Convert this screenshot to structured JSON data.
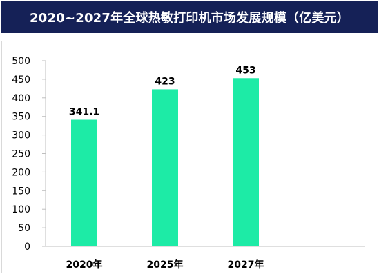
{
  "chart_data": {
    "type": "bar",
    "title": "2020~2027年全球热敏打印机市场发展规模（亿美元）",
    "categories": [
      "2020年",
      "2025年",
      "2027年"
    ],
    "values": [
      341.1,
      423,
      453
    ],
    "value_labels": [
      "341.1",
      "423",
      "453"
    ],
    "ylim": [
      0,
      500
    ],
    "yticks": [
      0,
      50,
      100,
      150,
      200,
      250,
      300,
      350,
      400,
      450,
      500
    ],
    "xlabel": "",
    "ylabel": "",
    "grid": false,
    "legend": "none",
    "colors": {
      "bar": "#1DEBA6",
      "title_background": "#152157",
      "title_text": "#FFFFFF",
      "axis": "#BFBFBF"
    }
  }
}
